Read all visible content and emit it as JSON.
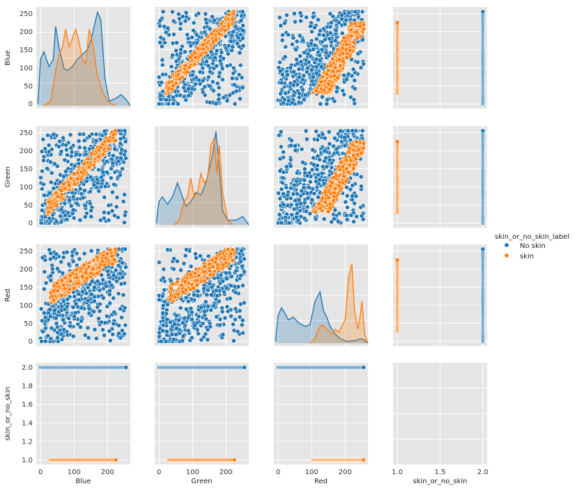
{
  "chart_data": {
    "type": "scatter",
    "subtype": "pairplot",
    "variables": [
      "Blue",
      "Green",
      "Red",
      "skin_or_no_skin"
    ],
    "hue": "skin_or_no_skin_label",
    "legend": {
      "title": "skin_or_no_skin_label",
      "placement": "right",
      "entries": [
        {
          "name": "No skin",
          "color": "#1f77b4"
        },
        {
          "name": "skin",
          "color": "#ff7f0e"
        }
      ]
    },
    "axes_ranges": {
      "Blue": [
        -13,
        268
      ],
      "Green": [
        -13,
        268
      ],
      "Red": [
        -13,
        268
      ],
      "skin_or_no_skin": [
        0.95,
        2.05
      ]
    },
    "ticks": {
      "Blue": [
        0,
        100,
        200
      ],
      "Green": [
        0,
        100,
        200
      ],
      "Red": [
        0,
        100,
        200
      ],
      "y_color": [
        0,
        50,
        100,
        150,
        200,
        250
      ],
      "skin_or_no_skin_x": [
        1.0,
        1.5,
        2.0
      ],
      "skin_or_no_skin_y": [
        1.0,
        1.2,
        1.4,
        1.6,
        1.8,
        2.0
      ]
    },
    "tick_label_text": {
      "skin_or_no_skin_x": [
        "1.0",
        "1.5",
        "2.0"
      ],
      "skin_or_no_skin_y": [
        "1.0",
        "1.2",
        "1.4",
        "1.6",
        "1.8",
        "2.0"
      ]
    },
    "distributions": {
      "Blue": {
        "No skin": [
          [
            -8,
            0.02
          ],
          [
            0,
            0.5
          ],
          [
            10,
            0.58
          ],
          [
            25,
            0.42
          ],
          [
            38,
            0.5
          ],
          [
            45,
            0.85
          ],
          [
            55,
            0.62
          ],
          [
            70,
            0.4
          ],
          [
            80,
            0.38
          ],
          [
            95,
            0.42
          ],
          [
            110,
            0.5
          ],
          [
            125,
            0.55
          ],
          [
            140,
            0.6
          ],
          [
            150,
            0.7
          ],
          [
            160,
            0.85
          ],
          [
            170,
            1.0
          ],
          [
            180,
            0.92
          ],
          [
            192,
            0.3
          ],
          [
            205,
            0.05
          ],
          [
            225,
            0.08
          ],
          [
            240,
            0.12
          ],
          [
            255,
            0.07
          ],
          [
            268,
            0
          ]
        ],
        "skin": [
          [
            10,
            0
          ],
          [
            30,
            0.05
          ],
          [
            45,
            0.38
          ],
          [
            55,
            0.55
          ],
          [
            65,
            0.62
          ],
          [
            75,
            0.82
          ],
          [
            85,
            0.63
          ],
          [
            95,
            0.72
          ],
          [
            105,
            0.82
          ],
          [
            115,
            0.68
          ],
          [
            125,
            0.5
          ],
          [
            135,
            0.45
          ],
          [
            145,
            0.82
          ],
          [
            155,
            0.68
          ],
          [
            170,
            0.32
          ],
          [
            185,
            0.15
          ],
          [
            200,
            0.05
          ],
          [
            225,
            0
          ]
        ]
      },
      "Green": {
        "No skin": [
          [
            -8,
            0.02
          ],
          [
            0,
            0.25
          ],
          [
            10,
            0.3
          ],
          [
            25,
            0.22
          ],
          [
            40,
            0.3
          ],
          [
            55,
            0.45
          ],
          [
            65,
            0.35
          ],
          [
            80,
            0.2
          ],
          [
            95,
            0.25
          ],
          [
            110,
            0.35
          ],
          [
            125,
            0.32
          ],
          [
            140,
            0.45
          ],
          [
            150,
            0.6
          ],
          [
            160,
            0.75
          ],
          [
            170,
            1.0
          ],
          [
            180,
            0.6
          ],
          [
            190,
            0.15
          ],
          [
            205,
            0.05
          ],
          [
            230,
            0.05
          ],
          [
            250,
            0.09
          ],
          [
            268,
            0
          ]
        ],
        "skin": [
          [
            45,
            0
          ],
          [
            60,
            0.05
          ],
          [
            75,
            0.25
          ],
          [
            85,
            0.3
          ],
          [
            95,
            0.5
          ],
          [
            105,
            0.3
          ],
          [
            115,
            0.35
          ],
          [
            125,
            0.55
          ],
          [
            135,
            0.45
          ],
          [
            145,
            0.5
          ],
          [
            155,
            0.85
          ],
          [
            165,
            0.93
          ],
          [
            172,
            0.55
          ],
          [
            180,
            0.85
          ],
          [
            190,
            0.35
          ],
          [
            205,
            0.05
          ],
          [
            220,
            0
          ]
        ]
      },
      "Red": {
        "No skin": [
          [
            -8,
            0.02
          ],
          [
            0,
            0.3
          ],
          [
            10,
            0.38
          ],
          [
            20,
            0.32
          ],
          [
            30,
            0.25
          ],
          [
            45,
            0.28
          ],
          [
            60,
            0.22
          ],
          [
            80,
            0.18
          ],
          [
            95,
            0.2
          ],
          [
            110,
            0.45
          ],
          [
            125,
            0.55
          ],
          [
            135,
            0.35
          ],
          [
            145,
            0.28
          ],
          [
            155,
            0.18
          ],
          [
            170,
            0.1
          ],
          [
            185,
            0.05
          ],
          [
            205,
            0.02
          ],
          [
            230,
            0.03
          ],
          [
            245,
            0.05
          ],
          [
            255,
            0.04
          ],
          [
            268,
            0
          ]
        ],
        "skin": [
          [
            95,
            0
          ],
          [
            110,
            0.05
          ],
          [
            120,
            0.15
          ],
          [
            130,
            0.2
          ],
          [
            140,
            0.17
          ],
          [
            150,
            0.14
          ],
          [
            160,
            0.1
          ],
          [
            170,
            0.15
          ],
          [
            180,
            0.12
          ],
          [
            190,
            0.18
          ],
          [
            200,
            0.25
          ],
          [
            210,
            0.7
          ],
          [
            220,
            0.85
          ],
          [
            228,
            0.35
          ],
          [
            238,
            0.15
          ],
          [
            245,
            0.3
          ],
          [
            250,
            0.45
          ],
          [
            258,
            0.1
          ],
          [
            268,
            0
          ]
        ]
      }
    },
    "scatter_bands": {
      "skin": {
        "Blue_Green": [
          15,
          225,
          20,
          0.35
        ],
        "Blue_Red": [
          35,
          225,
          120,
          0.4
        ]
      },
      "No skin": {
        "Blue_Green": [
          0,
          255,
          0,
          255
        ],
        "Blue_Red": [
          0,
          255,
          0,
          255
        ]
      }
    },
    "class_values": {
      "No skin": 2.0,
      "skin": 1.0
    },
    "grid": true,
    "background": "#e5e5e5"
  }
}
